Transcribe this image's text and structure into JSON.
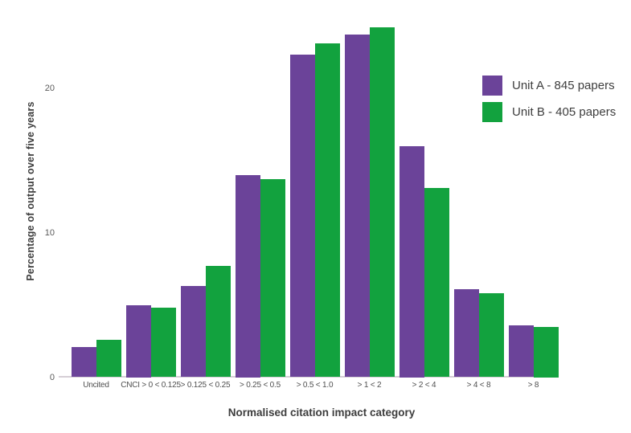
{
  "chart_data": {
    "type": "bar",
    "title": "",
    "xlabel": "Normalised citation impact category",
    "ylabel": "Percentage of output over five years",
    "categories": [
      "Uncited",
      "CNCI > 0 < 0.125",
      "> 0.125 < 0.25",
      "> 0.25 < 0.5",
      "> 0.5 < 1.0",
      "> 1 < 2",
      "> 2 < 4",
      "> 4 < 8",
      "> 8"
    ],
    "series": [
      {
        "name": "Unit A - 845 papers",
        "color": "#6b4399",
        "values": [
          2.1,
          5.0,
          6.3,
          14.0,
          22.3,
          23.7,
          16.0,
          6.1,
          3.6
        ]
      },
      {
        "name": "Unit B - 405 papers",
        "color": "#12a23e",
        "values": [
          2.6,
          4.8,
          7.7,
          13.7,
          23.1,
          24.2,
          13.1,
          5.8,
          3.5
        ]
      }
    ],
    "yticks": [
      0,
      10,
      20
    ],
    "ylim": [
      0,
      25
    ],
    "grid": false,
    "legend_position": "top-right"
  },
  "colors": {
    "unit_a": "#6b4399",
    "unit_b": "#12a23e",
    "axis_line": "#d6cfd6",
    "axis_text": "#3d3d3d",
    "tick_text": "#5a5a5a",
    "background": "#ffffff"
  }
}
